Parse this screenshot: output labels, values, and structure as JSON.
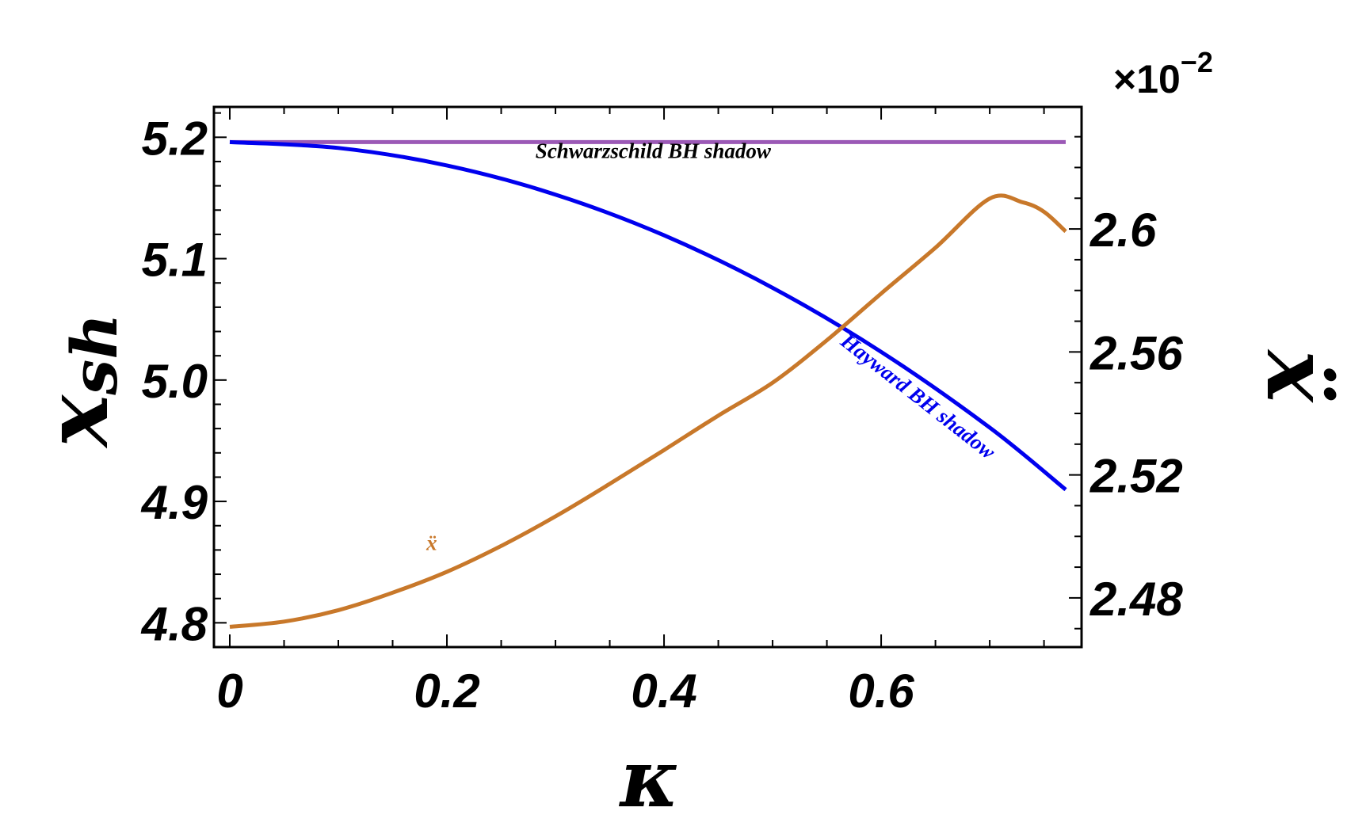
{
  "chart_data": {
    "type": "line",
    "x_label": "κ",
    "y_left_label": "x",
    "y_left_label_sub": "sh",
    "y_right_label": "ẍ",
    "y_right_multiplier_base": "×10",
    "y_right_multiplier_exp": "−2",
    "xlim": [
      0,
      0.77
    ],
    "y_left_lim": [
      4.78,
      5.225
    ],
    "y_right_lim": [
      2.464,
      2.6397
    ],
    "x_ticks": [
      {
        "value": 0,
        "label": "0"
      },
      {
        "value": 0.2,
        "label": "0.2"
      },
      {
        "value": 0.4,
        "label": "0.4"
      },
      {
        "value": 0.6,
        "label": "0.6"
      }
    ],
    "y_left_ticks": [
      {
        "value": 4.8,
        "label": "4.8"
      },
      {
        "value": 4.9,
        "label": "4.9"
      },
      {
        "value": 5.0,
        "label": "5.0"
      },
      {
        "value": 5.1,
        "label": "5.1"
      },
      {
        "value": 5.2,
        "label": "5.2"
      }
    ],
    "y_right_ticks": [
      {
        "value": 2.48,
        "label": "2.48"
      },
      {
        "value": 2.52,
        "label": "2.52"
      },
      {
        "value": 2.56,
        "label": "2.56"
      },
      {
        "value": 2.6,
        "label": "2.6"
      }
    ],
    "series": [
      {
        "name": "Schwarzschild  BH shadow",
        "axis": "left",
        "color": "#9b59b6",
        "x": [
          0,
          0.77
        ],
        "y": [
          5.196,
          5.196
        ]
      },
      {
        "name": "Hayward BH shadow",
        "axis": "left",
        "color": "#0000ee",
        "x": [
          0,
          0.1,
          0.2,
          0.3,
          0.4,
          0.5,
          0.6,
          0.7,
          0.77
        ],
        "y": [
          5.196,
          5.1912,
          5.1768,
          5.1528,
          5.1192,
          5.076,
          5.0232,
          4.9608,
          4.9097
        ]
      },
      {
        "name": "ẍ",
        "axis": "right",
        "color": "#c8782a",
        "x": [
          0,
          0.05,
          0.1,
          0.15,
          0.2,
          0.25,
          0.3,
          0.35,
          0.4,
          0.45,
          0.5,
          0.55,
          0.6,
          0.65,
          0.7,
          0.73,
          0.75,
          0.77
        ],
        "y": [
          2.4706,
          2.4723,
          2.476,
          2.4817,
          2.4885,
          2.4969,
          2.5065,
          2.5171,
          2.5281,
          2.5393,
          2.55,
          2.5638,
          2.579,
          2.5939,
          2.6099,
          2.6087,
          2.6056,
          2.5992
        ]
      }
    ],
    "annotations": [
      {
        "text": "Schwarzschild  BH shadow",
        "color": "#000000",
        "x": 0.39,
        "y_left": 5.183,
        "rotate": 0
      },
      {
        "text": "Hayward BH shadow",
        "color": "#0000ee",
        "x": 0.63,
        "y_left": 4.982,
        "rotate": 38
      },
      {
        "text": "ẍ",
        "color": "#c8782a",
        "x": 0.186,
        "y_left": 4.86,
        "rotate": 0
      }
    ],
    "grid": false,
    "legend": "none"
  }
}
